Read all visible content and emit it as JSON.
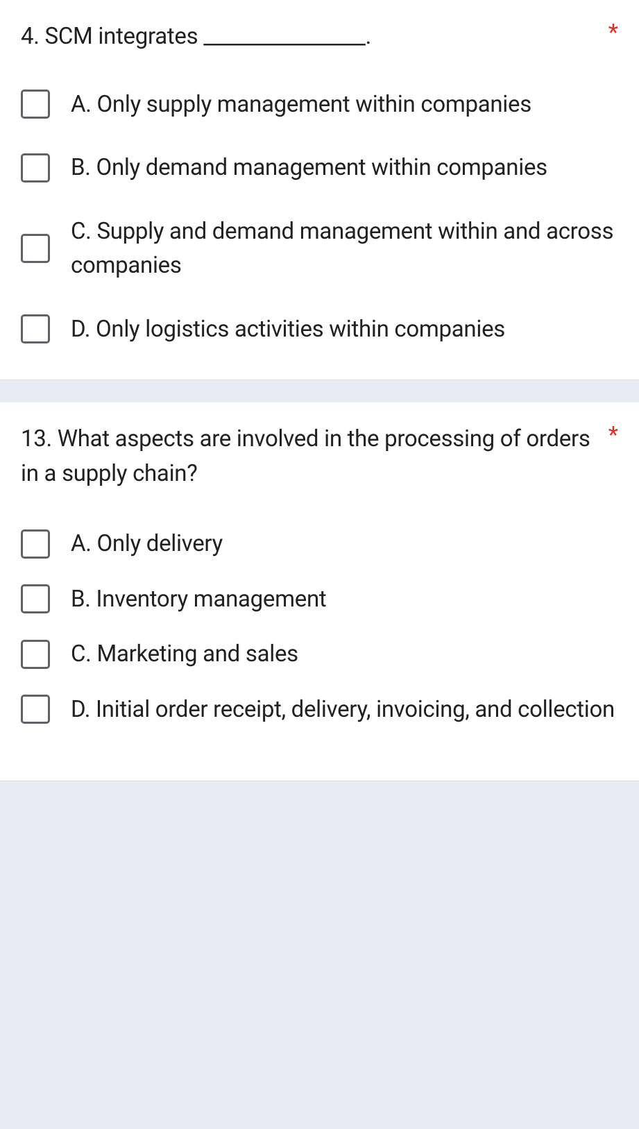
{
  "questions": [
    {
      "number": "4.",
      "text": "SCM integrates ________________.",
      "required": "*",
      "options": [
        "A. Only supply management within companies",
        "B. Only demand management within companies",
        "C. Supply and demand management within and across companies",
        "D. Only logistics activities within companies"
      ]
    },
    {
      "number": "13.",
      "text": "What aspects are involved in the processing of orders in a supply chain?",
      "required": "*",
      "options": [
        "A. Only delivery",
        "B. Inventory management",
        "C. Marketing and sales",
        "D. Initial order receipt, delivery, invoicing, and collection"
      ]
    }
  ]
}
